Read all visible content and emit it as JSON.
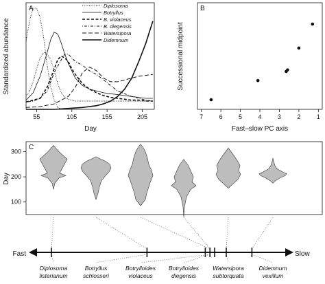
{
  "chart_data": [
    {
      "type": "line",
      "panel_label": "A",
      "xlabel": "Day",
      "ylabel": "Standardized abundance",
      "xlim": [
        40,
        222
      ],
      "ylim": [
        0,
        0.58
      ],
      "x_ticks": [
        55,
        105,
        155,
        205
      ],
      "legend_placement": "top-right",
      "series": [
        {
          "name": "Diplosoma",
          "style": "dotted-fine",
          "x": [
            40,
            45,
            50,
            55,
            60,
            65,
            70,
            75,
            80,
            85,
            90,
            95,
            100,
            105,
            110,
            120,
            130,
            140,
            150,
            160,
            170,
            180,
            190,
            200,
            210,
            220
          ],
          "y": [
            0.07,
            0.1,
            0.15,
            0.22,
            0.28,
            0.31,
            0.3,
            0.27,
            0.21,
            0.14,
            0.09,
            0.065,
            0.055,
            0.05,
            0.045,
            0.045,
            0.045,
            0.045,
            0.045,
            0.045,
            0.045,
            0.045,
            0.045,
            0.045,
            0.045,
            0.045
          ]
        },
        {
          "name": "Botryllus",
          "style": "solid-thin",
          "x": [
            40,
            50,
            60,
            70,
            75,
            80,
            85,
            90,
            95,
            100,
            110,
            120,
            130,
            140,
            150,
            160,
            170,
            180,
            190,
            200,
            210,
            220
          ],
          "y": [
            0.05,
            0.09,
            0.18,
            0.31,
            0.38,
            0.42,
            0.41,
            0.36,
            0.3,
            0.25,
            0.17,
            0.13,
            0.11,
            0.1,
            0.09,
            0.085,
            0.08,
            0.075,
            0.07,
            0.065,
            0.06,
            0.06
          ]
        },
        {
          "name": "B. violaceus",
          "style": "dashed",
          "x": [
            40,
            50,
            60,
            70,
            80,
            85,
            90,
            95,
            100,
            105,
            110,
            120,
            130,
            140,
            150,
            160,
            170,
            180,
            190,
            200,
            210,
            220
          ],
          "y": [
            0.04,
            0.05,
            0.06,
            0.12,
            0.22,
            0.27,
            0.29,
            0.28,
            0.26,
            0.22,
            0.19,
            0.14,
            0.11,
            0.09,
            0.075,
            0.065,
            0.06,
            0.055,
            0.05,
            0.05,
            0.045,
            0.045
          ]
        },
        {
          "name": "B. diegensis",
          "style": "dot-dash",
          "x": [
            40,
            50,
            60,
            70,
            80,
            90,
            95,
            100,
            105,
            110,
            120,
            130,
            140,
            150,
            160,
            170,
            180,
            190,
            200,
            210,
            220
          ],
          "y": [
            0.04,
            0.045,
            0.06,
            0.1,
            0.2,
            0.27,
            0.3,
            0.3,
            0.28,
            0.26,
            0.24,
            0.21,
            0.19,
            0.16,
            0.13,
            0.1,
            0.085,
            0.07,
            0.06,
            0.05,
            0.045
          ]
        },
        {
          "name": "Watersipora",
          "style": "long-dash",
          "x": [
            40,
            60,
            80,
            100,
            110,
            120,
            130,
            140,
            150,
            160,
            170,
            180,
            190,
            200,
            210,
            220
          ],
          "y": [
            0.01,
            0.015,
            0.03,
            0.07,
            0.12,
            0.2,
            0.23,
            0.21,
            0.17,
            0.15,
            0.15,
            0.16,
            0.17,
            0.18,
            0.185,
            0.19
          ]
        },
        {
          "name": "Didemnum",
          "style": "solid-thick",
          "x": [
            40,
            80,
            100,
            120,
            140,
            150,
            160,
            170,
            180,
            190,
            200,
            210,
            220
          ],
          "y": [
            0,
            0,
            0.005,
            0.01,
            0.02,
            0.03,
            0.045,
            0.07,
            0.11,
            0.17,
            0.26,
            0.36,
            0.48
          ]
        }
      ],
      "diplosoma_fine_curve": {
        "x": [
          40,
          45,
          50,
          55,
          60,
          65,
          70,
          75,
          80,
          85,
          90
        ],
        "y": [
          0.37,
          0.48,
          0.55,
          0.55,
          0.5,
          0.39,
          0.24,
          0.12,
          0.05,
          0.01,
          0
        ]
      }
    },
    {
      "type": "scatter",
      "panel_label": "B",
      "xlabel": "Fast–slow PC axis",
      "ylabel": "Successional midpoint",
      "xlim": [
        7.2,
        0.8
      ],
      "ylim": [
        0,
        200
      ],
      "x_ticks": [
        7,
        6,
        5,
        4,
        3,
        2,
        1
      ],
      "y_ticks": [
        0,
        50,
        100,
        150,
        200
      ],
      "x": [
        6.5,
        4.1,
        2.65,
        2.58,
        2.0,
        1.3
      ],
      "y": [
        18,
        54,
        71,
        74,
        115,
        160
      ]
    },
    {
      "type": "violin",
      "panel_label": "C",
      "ylabel": "Day",
      "ylim": [
        50,
        340
      ],
      "y_ticks": [
        100,
        200,
        300
      ],
      "axis_labels": {
        "left": "Fast",
        "right": "Slow"
      },
      "species": [
        {
          "name_line1": "Diplosoma",
          "name_line2": "listerianum",
          "axis_position": 0.0,
          "profile": [
            [
              150,
              0
            ],
            [
              175,
              2
            ],
            [
              195,
              8
            ],
            [
              205,
              18
            ],
            [
              215,
              9
            ],
            [
              230,
              12
            ],
            [
              250,
              16
            ],
            [
              270,
              20
            ],
            [
              285,
              14
            ],
            [
              300,
              8
            ],
            [
              315,
              3
            ],
            [
              325,
              0
            ]
          ]
        },
        {
          "name_line1": "Botryllus",
          "name_line2": "schlosseri",
          "axis_position": 0.41,
          "profile": [
            [
              110,
              0
            ],
            [
              135,
              3
            ],
            [
              160,
              5
            ],
            [
              185,
              8
            ],
            [
              205,
              14
            ],
            [
              220,
              19
            ],
            [
              235,
              22
            ],
            [
              250,
              20
            ],
            [
              262,
              14
            ],
            [
              272,
              6
            ],
            [
              280,
              0
            ]
          ]
        },
        {
          "name_line1": "Botrylloides",
          "name_line2": "violaceus",
          "axis_position": 0.68,
          "profile": [
            [
              85,
              0
            ],
            [
              110,
              7
            ],
            [
              135,
              9
            ],
            [
              160,
              12
            ],
            [
              185,
              15
            ],
            [
              205,
              18
            ],
            [
              225,
              16
            ],
            [
              250,
              12
            ],
            [
              275,
              10
            ],
            [
              300,
              7
            ],
            [
              315,
              4
            ],
            [
              330,
              0
            ]
          ]
        },
        {
          "name_line1": "Botrylloides",
          "name_line2": "diegensis",
          "axis_position": 0.68,
          "profile": [
            [
              40,
              0
            ],
            [
              80,
              1
            ],
            [
              120,
              4
            ],
            [
              150,
              10
            ],
            [
              165,
              18
            ],
            [
              180,
              12
            ],
            [
              200,
              14
            ],
            [
              225,
              10
            ],
            [
              248,
              6
            ],
            [
              262,
              2
            ],
            [
              270,
              0
            ]
          ]
        },
        {
          "name_line1": "Watersipora",
          "name_line2": "subtorquata",
          "axis_position": 0.75,
          "profile": [
            [
              155,
              0
            ],
            [
              175,
              8
            ],
            [
              190,
              14
            ],
            [
              210,
              18
            ],
            [
              225,
              15
            ],
            [
              245,
              17
            ],
            [
              265,
              13
            ],
            [
              285,
              8
            ],
            [
              300,
              4
            ],
            [
              315,
              0
            ]
          ]
        },
        {
          "name_line1": "Didemnum",
          "name_line2": "vexillum",
          "axis_position": 0.86,
          "profile": [
            [
              175,
              0
            ],
            [
              185,
              4
            ],
            [
              195,
              10
            ],
            [
              205,
              18
            ],
            [
              212,
              20
            ],
            [
              220,
              14
            ],
            [
              232,
              6
            ],
            [
              245,
              3
            ],
            [
              262,
              1
            ],
            [
              275,
              0
            ]
          ]
        }
      ],
      "axis_ticks": [
        0.0,
        0.41,
        0.66,
        0.68,
        0.7,
        0.75,
        0.86
      ]
    }
  ]
}
